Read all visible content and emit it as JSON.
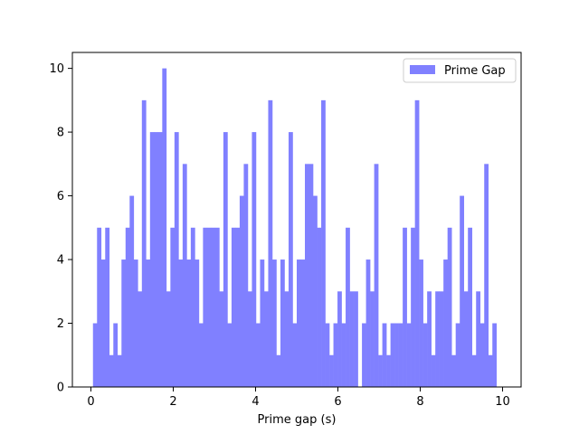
{
  "chart_data": {
    "type": "bar",
    "title": "",
    "xlabel": "Prime gap (s)",
    "ylabel": "",
    "xlim": [
      -0.45,
      10.45
    ],
    "ylim": [
      0,
      10.5
    ],
    "xticks": [
      0,
      2,
      4,
      6,
      8,
      10
    ],
    "yticks": [
      0,
      2,
      4,
      6,
      8,
      10
    ],
    "bin_start": 0.05,
    "bin_width": 0.099,
    "series": [
      {
        "name": "Prime Gap",
        "color": "#8080ff",
        "values": [
          2,
          5,
          4,
          5,
          1,
          2,
          1,
          4,
          5,
          6,
          4,
          3,
          9,
          4,
          8,
          8,
          8,
          10,
          3,
          5,
          8,
          4,
          7,
          4,
          5,
          4,
          2,
          5,
          5,
          5,
          5,
          3,
          8,
          2,
          5,
          5,
          6,
          7,
          3,
          8,
          2,
          4,
          3,
          9,
          4,
          1,
          4,
          3,
          8,
          2,
          4,
          4,
          7,
          7,
          6,
          5,
          9,
          2,
          1,
          2,
          3,
          2,
          5,
          3,
          3,
          0,
          2,
          4,
          3,
          7,
          1,
          2,
          1,
          2,
          2,
          2,
          5,
          2,
          5,
          9,
          4,
          2,
          3,
          1,
          3,
          3,
          4,
          5,
          1,
          2,
          6,
          3,
          5,
          1,
          3,
          2,
          7,
          1,
          2
        ]
      }
    ],
    "legend": {
      "position": "top-right"
    },
    "grid": false
  }
}
